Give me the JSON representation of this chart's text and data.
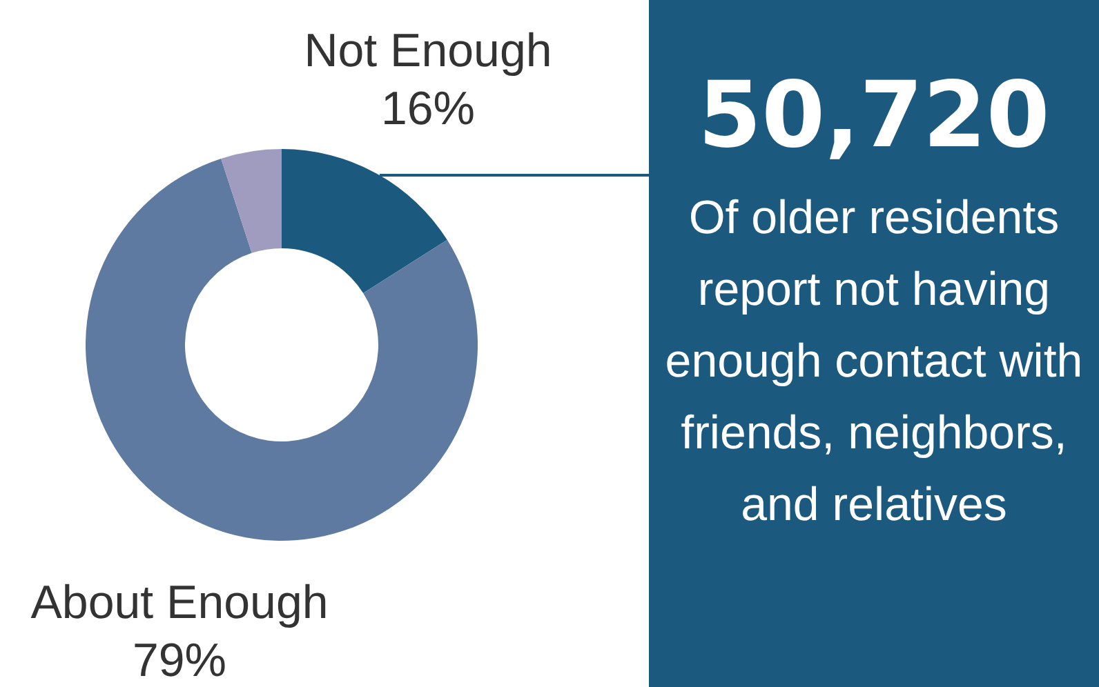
{
  "chart_data": [
    {
      "type": "donut",
      "categories": [
        "Not Enough",
        "About Enough",
        null
      ],
      "values": [
        16,
        79,
        5
      ],
      "colors": [
        "#1b5a7e",
        "#5f7aa1",
        "#a09cc0"
      ],
      "value_labels": [
        "16%",
        "79%",
        null
      ],
      "legend": false
    },
    {
      "type": "other",
      "title": "50,720",
      "annotations": [
        "Of older residents report not having enough contact with friends, neighbors, and relatives"
      ]
    }
  ]
}
